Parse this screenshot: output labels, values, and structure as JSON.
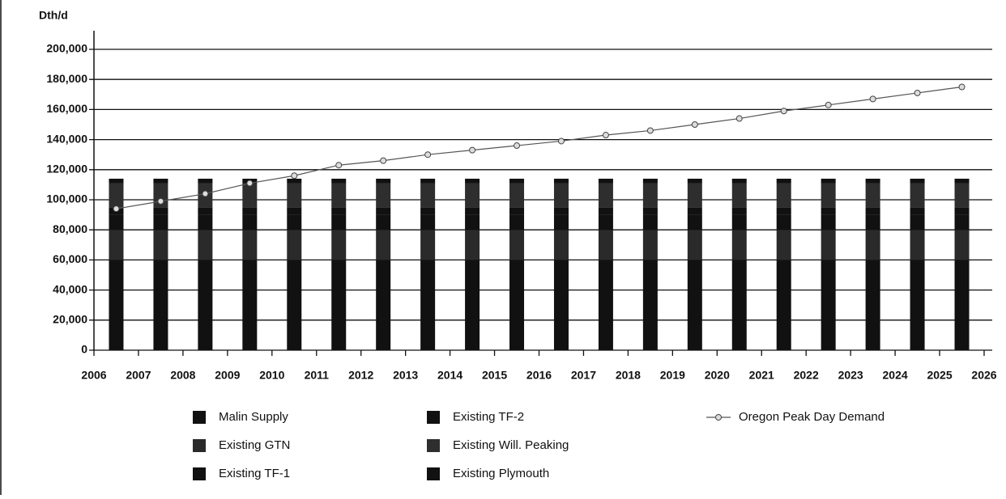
{
  "chart_data": {
    "type": "bar",
    "stacked": true,
    "y_axis_label": "Dth/d",
    "x": [
      2006.5,
      2007.5,
      2008.5,
      2009.5,
      2010.5,
      2011.5,
      2012.5,
      2013.5,
      2014.5,
      2015.5,
      2016.5,
      2017.5,
      2018.5,
      2019.5,
      2020.5,
      2021.5,
      2022.5,
      2023.5,
      2024.5,
      2025.5
    ],
    "xlim": [
      2006,
      2026
    ],
    "xticks": [
      2006,
      2007,
      2008,
      2009,
      2010,
      2011,
      2012,
      2013,
      2014,
      2015,
      2016,
      2017,
      2018,
      2019,
      2020,
      2021,
      2022,
      2023,
      2024,
      2025,
      2026
    ],
    "ylim": [
      0,
      200000
    ],
    "yticks": [
      0,
      {
        "value": 20000,
        "label": "20,000"
      },
      {
        "value": 40000,
        "label": "40,000"
      },
      {
        "value": 60000,
        "label": "60,000"
      },
      {
        "value": 80000,
        "label": "80,000"
      },
      {
        "value": 100000,
        "label": "100,000"
      },
      {
        "value": 120000,
        "label": "120,000"
      },
      {
        "value": 140000,
        "label": "140,000"
      },
      {
        "value": 160000,
        "label": "160,000"
      },
      {
        "value": 180000,
        "label": "180,000"
      },
      {
        "value": 200000,
        "label": "200,000"
      }
    ],
    "grid": true,
    "series": [
      {
        "name": "Malin Supply",
        "color": "#111111",
        "values": [
          60000,
          60000,
          60000,
          60000,
          60000,
          60000,
          60000,
          60000,
          60000,
          60000,
          60000,
          60000,
          60000,
          60000,
          60000,
          60000,
          60000,
          60000,
          60000,
          60000
        ]
      },
      {
        "name": "Existing GTN",
        "color": "#2a2a2a",
        "values": [
          20000,
          20000,
          20000,
          20000,
          20000,
          20000,
          20000,
          20000,
          20000,
          20000,
          20000,
          20000,
          20000,
          20000,
          20000,
          20000,
          20000,
          20000,
          20000,
          20000
        ]
      },
      {
        "name": "Existing TF-1",
        "color": "#111111",
        "values": [
          10000,
          10000,
          10000,
          10000,
          10000,
          10000,
          10000,
          10000,
          10000,
          10000,
          10000,
          10000,
          10000,
          10000,
          10000,
          10000,
          10000,
          10000,
          10000,
          10000
        ]
      },
      {
        "name": "Existing TF-2",
        "color": "#111111",
        "values": [
          5000,
          5000,
          5000,
          5000,
          5000,
          5000,
          5000,
          5000,
          5000,
          5000,
          5000,
          5000,
          5000,
          5000,
          5000,
          5000,
          5000,
          5000,
          5000,
          5000
        ]
      },
      {
        "name": "Existing Will. Peaking",
        "color": "#2e2e2e",
        "values": [
          16000,
          16000,
          16000,
          16000,
          16000,
          16000,
          16000,
          16000,
          16000,
          16000,
          16000,
          16000,
          16000,
          16000,
          16000,
          16000,
          16000,
          16000,
          16000,
          16000
        ]
      },
      {
        "name": "Existing Plymouth",
        "color": "#111111",
        "values": [
          3000,
          3000,
          3000,
          3000,
          3000,
          3000,
          3000,
          3000,
          3000,
          3000,
          3000,
          3000,
          3000,
          3000,
          3000,
          3000,
          3000,
          3000,
          3000,
          3000
        ]
      },
      {
        "name": "Oregon Peak Day Demand",
        "type": "line",
        "color": "#555555",
        "values": [
          94000,
          99000,
          104000,
          111000,
          116000,
          123000,
          126000,
          130000,
          133000,
          136000,
          139000,
          143000,
          146000,
          150000,
          154000,
          159000,
          163000,
          167000,
          171000,
          175000
        ]
      }
    ]
  }
}
